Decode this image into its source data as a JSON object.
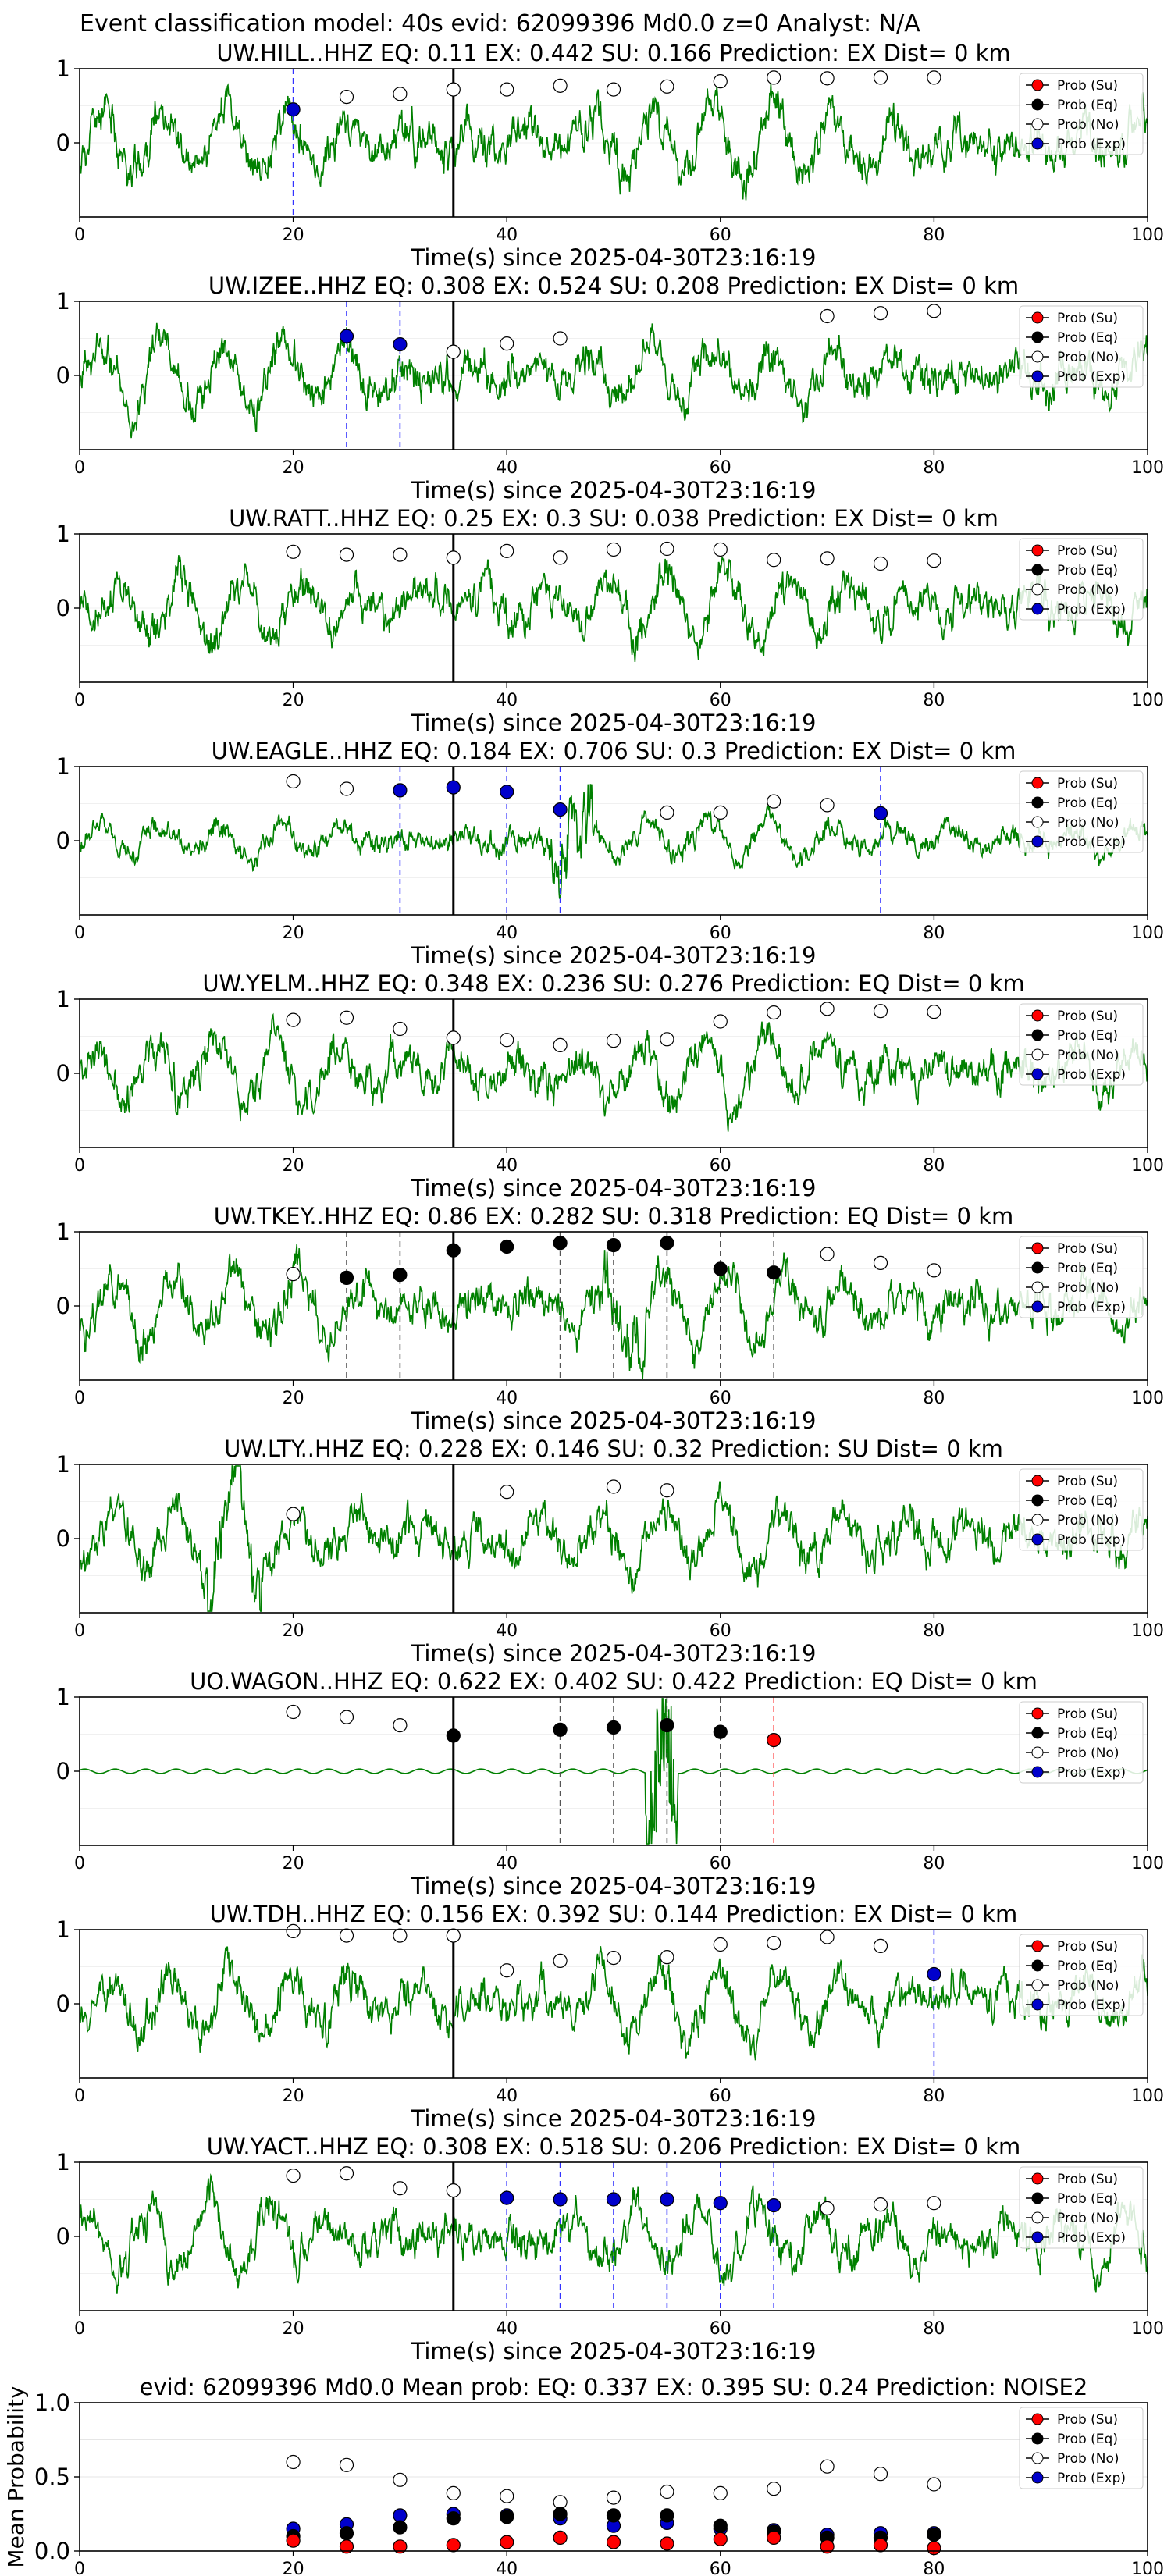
{
  "figure_title": "Event classification model: 40s evid: 62099396 Md0.0 z=0 Analyst: N/A",
  "colors": {
    "waveform": "#008000",
    "exp": "#0000cc",
    "eq": "#000000",
    "su": "#ff0000",
    "noise_fill": "#ffffff",
    "noise_edge": "#000000",
    "p_line": "#000000",
    "exp_line": "#3333ff",
    "eq_line": "#555555",
    "su_line": "#ff4444"
  },
  "legend": [
    "Prob (Su)",
    "Prob (Eq)",
    "Prob (No)",
    "Prob (Exp)"
  ],
  "x_ticks": [
    "0",
    "20",
    "40",
    "60",
    "80",
    "100"
  ],
  "chart_data": [
    {
      "type": "line",
      "title": "UW.HILL..HHZ   EQ: 0.11  EX: 0.442  SU: 0.166    Prediction: EX    Dist= 0 km",
      "xlabel": "Time(s) since 2025-04-30T23:16:19",
      "xlim": [
        0,
        100
      ],
      "ylim": [
        -1,
        1
      ],
      "y_ticks": [
        "1",
        "0"
      ],
      "p_time": 35,
      "wave": {
        "style": "green",
        "amp": 0.55,
        "seed": 11
      },
      "noise": [
        [
          25,
          0.62
        ],
        [
          30,
          0.66
        ],
        [
          35,
          0.72
        ],
        [
          40,
          0.72
        ],
        [
          45,
          0.77
        ],
        [
          50,
          0.72
        ],
        [
          55,
          0.76
        ],
        [
          60,
          0.83
        ],
        [
          65,
          0.88
        ],
        [
          70,
          0.87
        ],
        [
          75,
          0.88
        ],
        [
          80,
          0.88
        ]
      ],
      "exp": [
        [
          20,
          0.45
        ]
      ],
      "eq": [],
      "su": [],
      "exp_lines": [
        20
      ],
      "eq_lines": [],
      "su_lines": []
    },
    {
      "type": "line",
      "title": "UW.IZEE..HHZ   EQ: 0.308  EX: 0.524  SU: 0.208    Prediction: EX    Dist= 0 km",
      "xlabel": "Time(s) since 2025-04-30T23:16:19",
      "xlim": [
        0,
        100
      ],
      "ylim": [
        -1,
        1
      ],
      "y_ticks": [
        "1",
        "0"
      ],
      "p_time": 35,
      "wave": {
        "style": "green",
        "amp": 0.5,
        "seed": 23
      },
      "noise": [
        [
          35,
          0.32
        ],
        [
          40,
          0.43
        ],
        [
          45,
          0.5
        ],
        [
          70,
          0.8
        ],
        [
          75,
          0.84
        ],
        [
          80,
          0.87
        ]
      ],
      "exp": [
        [
          25,
          0.53
        ],
        [
          30,
          0.42
        ]
      ],
      "eq": [],
      "su": [],
      "exp_lines": [
        25,
        30
      ],
      "eq_lines": [],
      "su_lines": []
    },
    {
      "type": "line",
      "title": "UW.RATT..HHZ   EQ: 0.25  EX: 0.3  SU: 0.038    Prediction: EX    Dist= 0 km",
      "xlabel": "Time(s) since 2025-04-30T23:16:19",
      "xlim": [
        0,
        100
      ],
      "ylim": [
        -1,
        1
      ],
      "y_ticks": [
        "1",
        "0"
      ],
      "p_time": 35,
      "wave": {
        "style": "green",
        "amp": 0.5,
        "seed": 37
      },
      "noise": [
        [
          20,
          0.76
        ],
        [
          25,
          0.72
        ],
        [
          30,
          0.72
        ],
        [
          35,
          0.68
        ],
        [
          40,
          0.77
        ],
        [
          45,
          0.68
        ],
        [
          50,
          0.79
        ],
        [
          55,
          0.8
        ],
        [
          60,
          0.79
        ],
        [
          65,
          0.65
        ],
        [
          70,
          0.67
        ],
        [
          75,
          0.6
        ],
        [
          80,
          0.64
        ]
      ],
      "exp": [],
      "eq": [],
      "su": [],
      "exp_lines": [],
      "eq_lines": [],
      "su_lines": []
    },
    {
      "type": "line",
      "title": "UW.EAGLE..HHZ   EQ: 0.184  EX: 0.706  SU: 0.3    Prediction: EX    Dist= 0 km",
      "xlabel": "Time(s) since 2025-04-30T23:16:19",
      "xlim": [
        0,
        100
      ],
      "ylim": [
        -1,
        1
      ],
      "y_ticks": [
        "1",
        "0"
      ],
      "p_time": 35,
      "wave": {
        "style": "green",
        "amp": 0.3,
        "seed": 41,
        "burst": [
          44,
          48
        ]
      },
      "noise": [
        [
          20,
          0.8
        ],
        [
          25,
          0.7
        ],
        [
          55,
          0.38
        ],
        [
          60,
          0.38
        ],
        [
          65,
          0.53
        ],
        [
          70,
          0.48
        ]
      ],
      "exp": [
        [
          30,
          0.68
        ],
        [
          35,
          0.72
        ],
        [
          40,
          0.66
        ],
        [
          45,
          0.42
        ],
        [
          75,
          0.37
        ]
      ],
      "eq": [],
      "su": [],
      "exp_lines": [
        30,
        40,
        45,
        75
      ],
      "eq_lines": [],
      "su_lines": []
    },
    {
      "type": "line",
      "title": "UW.YELM..HHZ   EQ: 0.348  EX: 0.236  SU: 0.276    Prediction: EQ    Dist= 0 km",
      "xlabel": "Time(s) since 2025-04-30T23:16:19",
      "xlim": [
        0,
        100
      ],
      "ylim": [
        -1,
        1
      ],
      "y_ticks": [
        "1",
        "0"
      ],
      "p_time": 35,
      "wave": {
        "style": "green",
        "amp": 0.5,
        "seed": 53
      },
      "noise": [
        [
          20,
          0.72
        ],
        [
          25,
          0.75
        ],
        [
          30,
          0.6
        ],
        [
          35,
          0.48
        ],
        [
          40,
          0.45
        ],
        [
          45,
          0.38
        ],
        [
          50,
          0.44
        ],
        [
          55,
          0.46
        ],
        [
          60,
          0.7
        ],
        [
          65,
          0.82
        ],
        [
          70,
          0.87
        ],
        [
          75,
          0.84
        ],
        [
          80,
          0.83
        ]
      ],
      "exp": [],
      "eq": [],
      "su": [],
      "exp_lines": [],
      "eq_lines": [],
      "su_lines": []
    },
    {
      "type": "line",
      "title": "UW.TKEY..HHZ   EQ: 0.86  EX: 0.282  SU: 0.318    Prediction: EQ    Dist= 0 km",
      "xlabel": "Time(s) since 2025-04-30T23:16:19",
      "xlim": [
        0,
        100
      ],
      "ylim": [
        -1,
        1
      ],
      "y_ticks": [
        "1",
        "0"
      ],
      "p_time": 35,
      "wave": {
        "style": "green",
        "amp": 0.5,
        "seed": 67,
        "burst": [
          49,
          53
        ]
      },
      "noise": [
        [
          20,
          0.43
        ],
        [
          70,
          0.7
        ],
        [
          75,
          0.58
        ],
        [
          80,
          0.48
        ]
      ],
      "exp": [],
      "eq": [
        [
          25,
          0.38
        ],
        [
          30,
          0.42
        ],
        [
          35,
          0.75
        ],
        [
          40,
          0.8
        ],
        [
          45,
          0.85
        ],
        [
          50,
          0.82
        ],
        [
          55,
          0.85
        ],
        [
          60,
          0.5
        ],
        [
          65,
          0.45
        ]
      ],
      "su": [],
      "exp_lines": [],
      "eq_lines": [
        25,
        30,
        45,
        50,
        55,
        60,
        65
      ],
      "su_lines": []
    },
    {
      "type": "line",
      "title": "UW.LTY..HHZ   EQ: 0.228  EX: 0.146  SU: 0.32    Prediction: SU    Dist= 0 km",
      "xlabel": "Time(s) since 2025-04-30T23:16:19",
      "xlim": [
        0,
        100
      ],
      "ylim": [
        -1,
        1
      ],
      "y_ticks": [
        "1",
        "0"
      ],
      "p_time": 35,
      "wave": {
        "style": "green",
        "amp": 0.5,
        "seed": 79,
        "burst": [
          12,
          17
        ]
      },
      "noise": [
        [
          20,
          0.33
        ],
        [
          40,
          0.63
        ],
        [
          50,
          0.7
        ],
        [
          55,
          0.65
        ]
      ],
      "exp": [],
      "eq": [],
      "su": [],
      "exp_lines": [],
      "eq_lines": [],
      "su_lines": []
    },
    {
      "type": "line",
      "title": "UO.WAGON..HHZ   EQ: 0.622  EX: 0.402  SU: 0.422    Prediction: EQ    Dist= 0 km",
      "xlabel": "Time(s) since 2025-04-30T23:16:19",
      "xlim": [
        0,
        100
      ],
      "ylim": [
        -1,
        1
      ],
      "y_ticks": [
        "1",
        "0"
      ],
      "p_time": 35,
      "wave": {
        "style": "flat",
        "amp": 0.03,
        "seed": 83,
        "burst": [
          53,
          56
        ]
      },
      "noise": [
        [
          20,
          0.8
        ],
        [
          25,
          0.73
        ],
        [
          30,
          0.62
        ]
      ],
      "exp": [],
      "eq": [
        [
          35,
          0.48
        ],
        [
          45,
          0.56
        ],
        [
          50,
          0.59
        ],
        [
          55,
          0.62
        ],
        [
          60,
          0.53
        ]
      ],
      "su": [
        [
          65,
          0.42
        ]
      ],
      "exp_lines": [],
      "eq_lines": [
        45,
        50,
        55,
        60
      ],
      "su_lines": [
        65
      ]
    },
    {
      "type": "line",
      "title": "UW.TDH..HHZ   EQ: 0.156  EX: 0.392  SU: 0.144    Prediction: EX    Dist= 0 km",
      "xlabel": "Time(s) since 2025-04-30T23:16:19",
      "xlim": [
        0,
        100
      ],
      "ylim": [
        -1,
        1
      ],
      "y_ticks": [
        "1",
        "0"
      ],
      "p_time": 35,
      "wave": {
        "style": "green",
        "amp": 0.5,
        "seed": 97
      },
      "noise": [
        [
          20,
          0.98
        ],
        [
          25,
          0.92
        ],
        [
          30,
          0.92
        ],
        [
          35,
          0.92
        ],
        [
          40,
          0.45
        ],
        [
          45,
          0.58
        ],
        [
          50,
          0.62
        ],
        [
          55,
          0.63
        ],
        [
          60,
          0.8
        ],
        [
          65,
          0.82
        ],
        [
          70,
          0.9
        ],
        [
          75,
          0.78
        ]
      ],
      "exp": [
        [
          80,
          0.4
        ]
      ],
      "eq": [],
      "su": [],
      "exp_lines": [
        80
      ],
      "eq_lines": [],
      "su_lines": []
    },
    {
      "type": "line",
      "title": "UW.YACT..HHZ   EQ: 0.308  EX: 0.518  SU: 0.206    Prediction: EX    Dist= 0 km",
      "xlabel": "Time(s) since 2025-04-30T23:16:19",
      "xlim": [
        0,
        100
      ],
      "ylim": [
        -1,
        1
      ],
      "y_ticks": [
        "1",
        "0"
      ],
      "p_time": 35,
      "wave": {
        "style": "green",
        "amp": 0.5,
        "seed": 101
      },
      "noise": [
        [
          20,
          0.82
        ],
        [
          25,
          0.85
        ],
        [
          30,
          0.65
        ],
        [
          35,
          0.62
        ],
        [
          70,
          0.38
        ],
        [
          75,
          0.43
        ],
        [
          80,
          0.45
        ]
      ],
      "exp": [
        [
          40,
          0.52
        ],
        [
          45,
          0.5
        ],
        [
          50,
          0.5
        ],
        [
          55,
          0.5
        ],
        [
          60,
          0.45
        ],
        [
          65,
          0.42
        ]
      ],
      "eq": [],
      "su": [],
      "exp_lines": [
        40,
        45,
        50,
        55,
        60,
        65
      ],
      "eq_lines": [],
      "su_lines": []
    },
    {
      "type": "scatter",
      "title": "evid: 62099396  Md0.0   Mean prob:   EQ: 0.337  EX: 0.395  SU: 0.24   Prediction: NOISE2",
      "xlabel": "",
      "ylabel": "Mean Probability",
      "xlim": [
        0,
        100
      ],
      "ylim": [
        0,
        1
      ],
      "y_ticks": [
        "1.0",
        "0.5",
        "0.0"
      ],
      "x": [
        20,
        25,
        30,
        35,
        40,
        45,
        50,
        55,
        60,
        65,
        70,
        75,
        80
      ],
      "series": [
        {
          "name": "Prob (Su)",
          "values": [
            0.07,
            0.03,
            0.03,
            0.04,
            0.06,
            0.09,
            0.06,
            0.05,
            0.08,
            0.09,
            0.03,
            0.04,
            0.02
          ]
        },
        {
          "name": "Prob (Eq)",
          "values": [
            0.1,
            0.12,
            0.16,
            0.22,
            0.23,
            0.25,
            0.24,
            0.24,
            0.17,
            0.13,
            0.09,
            0.09,
            0.11
          ]
        },
        {
          "name": "Prob (No)",
          "values": [
            0.6,
            0.58,
            0.48,
            0.39,
            0.37,
            0.33,
            0.36,
            0.4,
            0.39,
            0.42,
            0.57,
            0.52,
            0.45
          ]
        },
        {
          "name": "Prob (Exp)",
          "values": [
            0.15,
            0.18,
            0.24,
            0.25,
            0.24,
            0.22,
            0.17,
            0.19,
            0.15,
            0.14,
            0.11,
            0.12,
            0.12
          ]
        }
      ]
    }
  ]
}
